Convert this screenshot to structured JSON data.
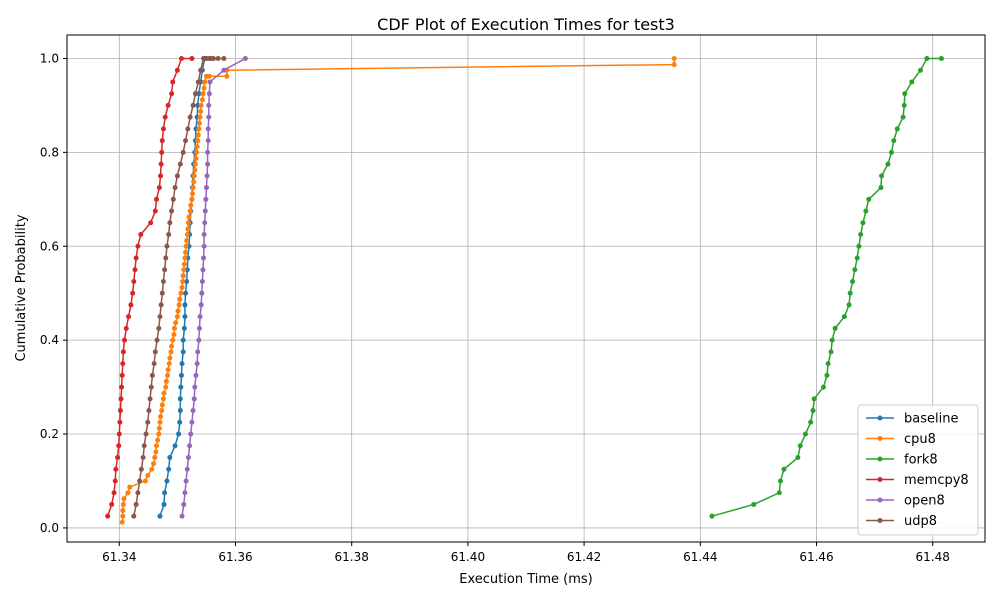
{
  "chart_data": {
    "type": "line",
    "title": "CDF Plot of Execution Times for test3",
    "xlabel": "Execution Time (ms)",
    "ylabel": "Cumulative Probability",
    "xlim": [
      61.331,
      61.489
    ],
    "ylim": [
      -0.03,
      1.05
    ],
    "xticks": [
      61.34,
      61.36,
      61.38,
      61.4,
      61.42,
      61.44,
      61.46,
      61.48
    ],
    "xtick_labels": [
      "61.34",
      "61.36",
      "61.38",
      "61.40",
      "61.42",
      "61.44",
      "61.46",
      "61.48"
    ],
    "yticks": [
      0.0,
      0.2,
      0.4,
      0.6,
      0.8,
      1.0
    ],
    "ytick_labels": [
      "0.0",
      "0.2",
      "0.4",
      "0.6",
      "0.8",
      "1.0"
    ],
    "grid": true,
    "legend_position": "lower-right",
    "series": [
      {
        "name": "baseline",
        "color": "#1f77b4",
        "x": [
          61.347,
          61.3477,
          61.3478,
          61.3482,
          61.3485,
          61.3487,
          61.3496,
          61.3502,
          61.3504,
          61.3505,
          61.3505,
          61.3506,
          61.3507,
          61.3508,
          61.351,
          61.351,
          61.3512,
          61.3513,
          61.3513,
          61.3514,
          61.3516,
          61.3517,
          61.3518,
          61.352,
          61.3521,
          61.3522,
          61.3523,
          61.3525,
          61.3526,
          61.3527,
          61.3528,
          61.353,
          61.3531,
          61.3532,
          61.3534,
          61.3535,
          61.3537,
          61.354,
          61.3543,
          61.3547,
          61.355
        ],
        "y": [
          0.025,
          0.05,
          0.075,
          0.1,
          0.125,
          0.15,
          0.175,
          0.2,
          0.225,
          0.25,
          0.275,
          0.3,
          0.325,
          0.35,
          0.375,
          0.4,
          0.425,
          0.45,
          0.475,
          0.5,
          0.525,
          0.55,
          0.575,
          0.6,
          0.625,
          0.65,
          0.675,
          0.7,
          0.725,
          0.75,
          0.775,
          0.8,
          0.825,
          0.85,
          0.875,
          0.9,
          0.925,
          0.95,
          0.975,
          1.0,
          1.0
        ]
      },
      {
        "name": "cpu8",
        "color": "#ff7f0e",
        "x": [
          61.3405,
          61.3406,
          61.3406,
          61.3407,
          61.3408,
          61.3415,
          61.3418,
          61.3445,
          61.3449,
          61.3456,
          61.3459,
          61.3461,
          61.3463,
          61.3464,
          61.3466,
          61.3468,
          61.3469,
          61.347,
          61.3471,
          61.3473,
          61.3474,
          61.3476,
          61.3477,
          61.348,
          61.3481,
          61.3483,
          61.3484,
          61.3486,
          61.3487,
          61.3489,
          61.349,
          61.3492,
          61.3494,
          61.3495,
          61.3497,
          61.35,
          61.3501,
          61.3503,
          61.3504,
          61.3506,
          61.3508,
          61.3509,
          61.351,
          61.3511,
          61.3512,
          61.3513,
          61.3514,
          61.3515,
          61.3516,
          61.3517,
          61.3518,
          61.3519,
          61.352,
          61.3522,
          61.3523,
          61.3525,
          61.3526,
          61.3527,
          61.3528,
          61.3529,
          61.353,
          61.3531,
          61.3532,
          61.3533,
          61.3534,
          61.3535,
          61.3536,
          61.3537,
          61.3538,
          61.3539,
          61.354,
          61.3541,
          61.3543,
          61.3544,
          61.3546,
          61.3547,
          61.355,
          61.3555,
          61.3585,
          61.3585,
          61.4355,
          61.4355
        ],
        "y": [
          0.012,
          0.025,
          0.037,
          0.05,
          0.062,
          0.075,
          0.087,
          0.1,
          0.112,
          0.125,
          0.137,
          0.15,
          0.162,
          0.175,
          0.187,
          0.2,
          0.212,
          0.225,
          0.237,
          0.25,
          0.262,
          0.275,
          0.287,
          0.3,
          0.312,
          0.325,
          0.337,
          0.35,
          0.362,
          0.375,
          0.387,
          0.4,
          0.412,
          0.425,
          0.437,
          0.45,
          0.462,
          0.475,
          0.487,
          0.5,
          0.512,
          0.525,
          0.537,
          0.55,
          0.562,
          0.575,
          0.587,
          0.6,
          0.612,
          0.625,
          0.637,
          0.65,
          0.662,
          0.675,
          0.687,
          0.7,
          0.712,
          0.725,
          0.737,
          0.75,
          0.762,
          0.775,
          0.787,
          0.8,
          0.812,
          0.825,
          0.837,
          0.85,
          0.862,
          0.875,
          0.887,
          0.9,
          0.912,
          0.925,
          0.937,
          0.95,
          0.962,
          0.962,
          0.962,
          0.975,
          0.987,
          1.0
        ]
      },
      {
        "name": "fork8",
        "color": "#2ca02c",
        "x": [
          61.442,
          61.4492,
          61.4536,
          61.4538,
          61.4544,
          61.4568,
          61.4572,
          61.4581,
          61.459,
          61.4594,
          61.4596,
          61.4612,
          61.4618,
          61.462,
          61.4625,
          61.4627,
          61.4632,
          61.4648,
          61.4656,
          61.4658,
          61.4662,
          61.4666,
          61.467,
          61.4673,
          61.4676,
          61.468,
          61.4685,
          61.469,
          61.4711,
          61.4712,
          61.4723,
          61.4729,
          61.4733,
          61.4739,
          61.4749,
          61.4751,
          61.4752,
          61.4764,
          61.4779,
          61.479,
          61.4815
        ],
        "y": [
          0.025,
          0.05,
          0.075,
          0.1,
          0.125,
          0.15,
          0.175,
          0.2,
          0.225,
          0.25,
          0.275,
          0.3,
          0.325,
          0.35,
          0.375,
          0.4,
          0.425,
          0.45,
          0.475,
          0.5,
          0.525,
          0.55,
          0.575,
          0.6,
          0.625,
          0.65,
          0.675,
          0.7,
          0.725,
          0.75,
          0.775,
          0.8,
          0.825,
          0.85,
          0.875,
          0.9,
          0.925,
          0.95,
          0.975,
          1.0,
          1.0
        ]
      },
      {
        "name": "memcpy8",
        "color": "#d62728",
        "x": [
          61.338,
          61.3387,
          61.3391,
          61.3393,
          61.3394,
          61.3397,
          61.3399,
          61.34,
          61.3401,
          61.3402,
          61.3403,
          61.3404,
          61.3405,
          61.3406,
          61.3407,
          61.3409,
          61.3412,
          61.3416,
          61.342,
          61.3423,
          61.3425,
          61.3427,
          61.3429,
          61.3432,
          61.3437,
          61.3454,
          61.3462,
          61.3464,
          61.3469,
          61.3471,
          61.3472,
          61.3473,
          61.3474,
          61.3476,
          61.3479,
          61.3484,
          61.349,
          61.3492,
          61.35,
          61.3507,
          61.3525
        ],
        "y": [
          0.025,
          0.05,
          0.075,
          0.1,
          0.125,
          0.15,
          0.175,
          0.2,
          0.225,
          0.25,
          0.275,
          0.3,
          0.325,
          0.35,
          0.375,
          0.4,
          0.425,
          0.45,
          0.475,
          0.5,
          0.525,
          0.55,
          0.575,
          0.6,
          0.625,
          0.65,
          0.675,
          0.7,
          0.725,
          0.75,
          0.775,
          0.8,
          0.825,
          0.85,
          0.875,
          0.9,
          0.925,
          0.95,
          0.975,
          1.0,
          1.0
        ]
      },
      {
        "name": "open8",
        "color": "#9467bd",
        "x": [
          61.3508,
          61.3511,
          61.3513,
          61.3515,
          61.3517,
          61.3519,
          61.3521,
          61.3523,
          61.3525,
          61.3527,
          61.3529,
          61.353,
          61.3532,
          61.3534,
          61.3535,
          61.3537,
          61.3538,
          61.3539,
          61.3541,
          61.3542,
          61.3543,
          61.3544,
          61.3545,
          61.3546,
          61.3546,
          61.3547,
          61.3548,
          61.3549,
          61.355,
          61.3551,
          61.3552,
          61.3552,
          61.3553,
          61.3553,
          61.3554,
          61.3554,
          61.3555,
          61.3556,
          61.358,
          61.3617
        ],
        "y": [
          0.025,
          0.05,
          0.075,
          0.1,
          0.125,
          0.15,
          0.175,
          0.2,
          0.225,
          0.25,
          0.275,
          0.3,
          0.325,
          0.35,
          0.375,
          0.4,
          0.425,
          0.45,
          0.475,
          0.5,
          0.525,
          0.55,
          0.575,
          0.6,
          0.625,
          0.65,
          0.675,
          0.7,
          0.725,
          0.75,
          0.775,
          0.8,
          0.825,
          0.85,
          0.875,
          0.9,
          0.925,
          0.95,
          0.975,
          1.0
        ]
      },
      {
        "name": "udp8",
        "color": "#8c564b",
        "x": [
          61.3425,
          61.3429,
          61.3432,
          61.3435,
          61.3438,
          61.3441,
          61.3443,
          61.3446,
          61.3449,
          61.3451,
          61.3453,
          61.3455,
          61.3457,
          61.346,
          61.3462,
          61.3465,
          61.3468,
          61.347,
          61.3472,
          61.3474,
          61.3476,
          61.3478,
          61.348,
          61.3482,
          61.3485,
          61.3487,
          61.349,
          61.3493,
          61.3496,
          61.35,
          61.3505,
          61.351,
          61.3514,
          61.3518,
          61.3522,
          61.3527,
          61.3531,
          61.3536,
          61.354,
          61.3545,
          61.355,
          61.3555,
          61.3558,
          61.3562,
          61.357,
          61.358
        ],
        "y": [
          0.025,
          0.05,
          0.075,
          0.1,
          0.125,
          0.15,
          0.175,
          0.2,
          0.225,
          0.25,
          0.275,
          0.3,
          0.325,
          0.35,
          0.375,
          0.4,
          0.425,
          0.45,
          0.475,
          0.5,
          0.525,
          0.55,
          0.575,
          0.6,
          0.625,
          0.65,
          0.675,
          0.7,
          0.725,
          0.75,
          0.775,
          0.8,
          0.825,
          0.85,
          0.875,
          0.9,
          0.925,
          0.95,
          0.975,
          1.0,
          1.0,
          1.0,
          1.0,
          1.0,
          1.0,
          1.0
        ]
      }
    ]
  }
}
